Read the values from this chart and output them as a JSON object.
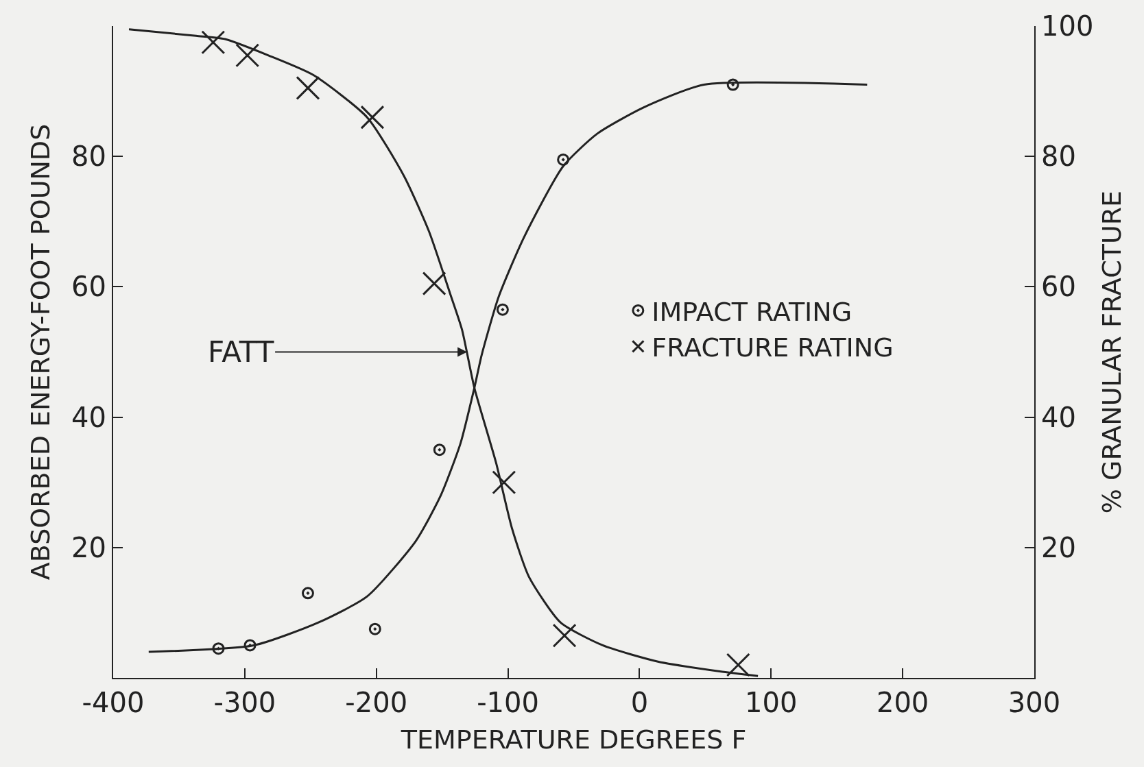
{
  "chart_data": {
    "type": "scatter",
    "xlabel": "TEMPERATURE DEGREES F",
    "ylabel": "ABSORBED ENERGY-FOOT POUNDS",
    "y2label": "% GRANULAR FRACTURE",
    "xlim": [
      -400,
      300
    ],
    "xticks": [
      -400,
      -300,
      -200,
      -100,
      0,
      100,
      200,
      300
    ],
    "ylim": [
      0,
      100
    ],
    "yticks": [
      20,
      40,
      60,
      80
    ],
    "y2lim": [
      0,
      100
    ],
    "y2ticks": [
      20,
      40,
      60,
      80,
      100
    ],
    "legend": "right",
    "annotations": [
      {
        "text": "FATT",
        "x": -131,
        "y": 50
      }
    ],
    "series": [
      {
        "name": "IMPACT RATING",
        "marker": "circle",
        "color": "#222222",
        "x": [
          -320,
          -296,
          -252,
          -201,
          -152,
          -104,
          -58,
          71
        ],
        "values": [
          4.5,
          5,
          13,
          7.5,
          35,
          56.5,
          79.5,
          91
        ]
      },
      {
        "name": "FRACTURE RATING",
        "marker": "cross",
        "color": "#222222",
        "axis": "y2",
        "x": [
          -324,
          -298,
          -252,
          -203,
          -156,
          -103,
          -57,
          75
        ],
        "values": [
          97.5,
          95.5,
          90.5,
          86,
          60.5,
          30,
          6.5,
          2
        ]
      },
      {
        "type": "line",
        "color": "#222222",
        "x": [
          -373,
          -293,
          -244,
          -207,
          -170,
          -151,
          -136,
          -125.5,
          -120,
          -107,
          -88,
          -58,
          -32,
          3,
          49,
          173
        ],
        "values": [
          4,
          5,
          8.5,
          12.5,
          21,
          28,
          36,
          44.5,
          49.5,
          58.5,
          67.5,
          78.5,
          83.5,
          87.5,
          91,
          91
        ]
      },
      {
        "type": "line",
        "color": "#222222",
        "axis": "y2",
        "x": [
          -388,
          -337,
          -315,
          -282,
          -248,
          -207,
          -179,
          -160,
          -144,
          -135,
          -125.5,
          -109,
          -97,
          -84,
          -60,
          -28,
          14,
          61,
          90
        ],
        "values": [
          99.5,
          98.5,
          98,
          95.5,
          92.5,
          86,
          77,
          68.5,
          59,
          53.5,
          44.5,
          33,
          23,
          15.5,
          8.5,
          5,
          2.5,
          1,
          0.3
        ]
      }
    ]
  }
}
